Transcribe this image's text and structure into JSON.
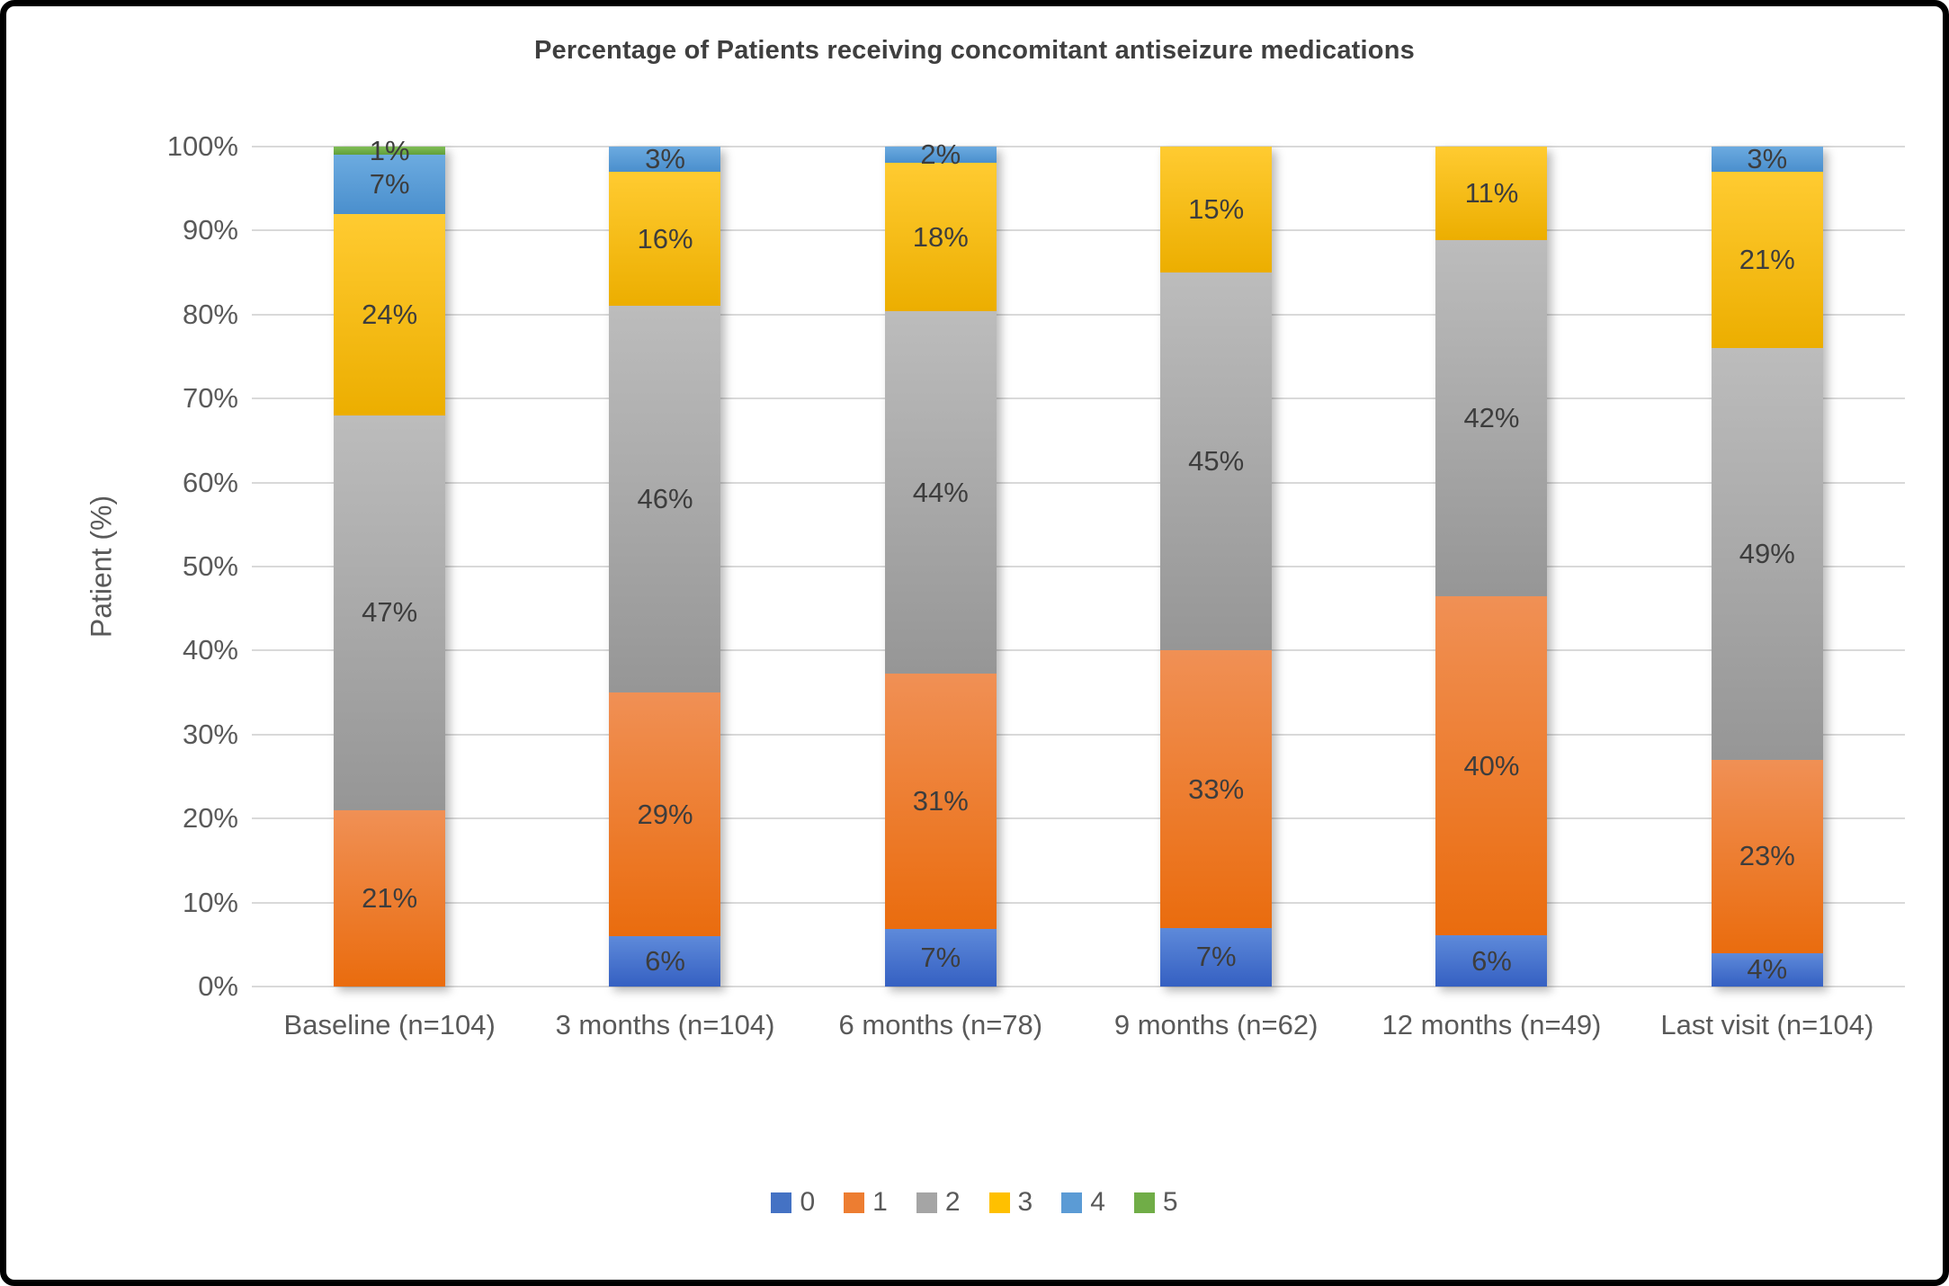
{
  "title": "Percentage of Patients receiving concomitant antiseizure medications",
  "y_axis": {
    "title": "Patient (%)",
    "ticks": [
      "0%",
      "10%",
      "20%",
      "30%",
      "40%",
      "50%",
      "60%",
      "70%",
      "80%",
      "90%",
      "100%"
    ]
  },
  "x_axis": {
    "categories": [
      "Baseline (n=104)",
      "3 months (n=104)",
      "6 months (n=78)",
      "9 months (n=62)",
      "12 months (n=49)",
      "Last visit (n=104)"
    ]
  },
  "legend": {
    "items": [
      {
        "label": "0",
        "color": "#4472C4"
      },
      {
        "label": "1",
        "color": "#ED7D31"
      },
      {
        "label": "2",
        "color": "#A5A5A5"
      },
      {
        "label": "3",
        "color": "#FFC000"
      },
      {
        "label": "4",
        "color": "#5B9BD5"
      },
      {
        "label": "5",
        "color": "#70AD47"
      }
    ]
  },
  "chart_data": {
    "type": "bar",
    "stacked": true,
    "percent_stacked": true,
    "title": "Percentage of Patients receiving concomitant antiseizure medications",
    "xlabel": "",
    "ylabel": "Patient (%)",
    "ylim": [
      0,
      100
    ],
    "grid": true,
    "legend_position": "bottom",
    "categories": [
      "Baseline (n=104)",
      "3 months (n=104)",
      "6 months (n=78)",
      "9 months (n=62)",
      "12 months (n=49)",
      "Last visit (n=104)"
    ],
    "series": [
      {
        "name": "0",
        "color": "#4472C4",
        "color_top": "#5e8ada",
        "color_bottom": "#3560c2",
        "values": [
          0,
          6,
          7,
          7,
          6,
          4
        ]
      },
      {
        "name": "1",
        "color": "#ED7D31",
        "color_top": "#f0905500",
        "color_top_fix": "#f09055",
        "color_bottom": "#ea6c0e",
        "values": [
          21,
          29,
          31,
          33,
          40,
          23
        ]
      },
      {
        "name": "2",
        "color": "#A5A5A5",
        "color_top": "#bcbcbc",
        "color_bottom": "#969696",
        "values": [
          47,
          46,
          44,
          45,
          42,
          49
        ]
      },
      {
        "name": "3",
        "color": "#FFC000",
        "color_top": "#ffcb31",
        "color_bottom": "#ecae00",
        "values": [
          24,
          16,
          18,
          15,
          11,
          21
        ]
      },
      {
        "name": "4",
        "color": "#5B9BD5",
        "color_top": "#6cabe0",
        "color_bottom": "#4a8fcd",
        "values": [
          7,
          3,
          2,
          0,
          0,
          3
        ]
      },
      {
        "name": "5",
        "color": "#70AD47",
        "color_top": "#7fbd55",
        "color_bottom": "#619f3a",
        "values": [
          1,
          0,
          0,
          0,
          0,
          0
        ]
      }
    ],
    "data_label_format": "{value}%"
  }
}
